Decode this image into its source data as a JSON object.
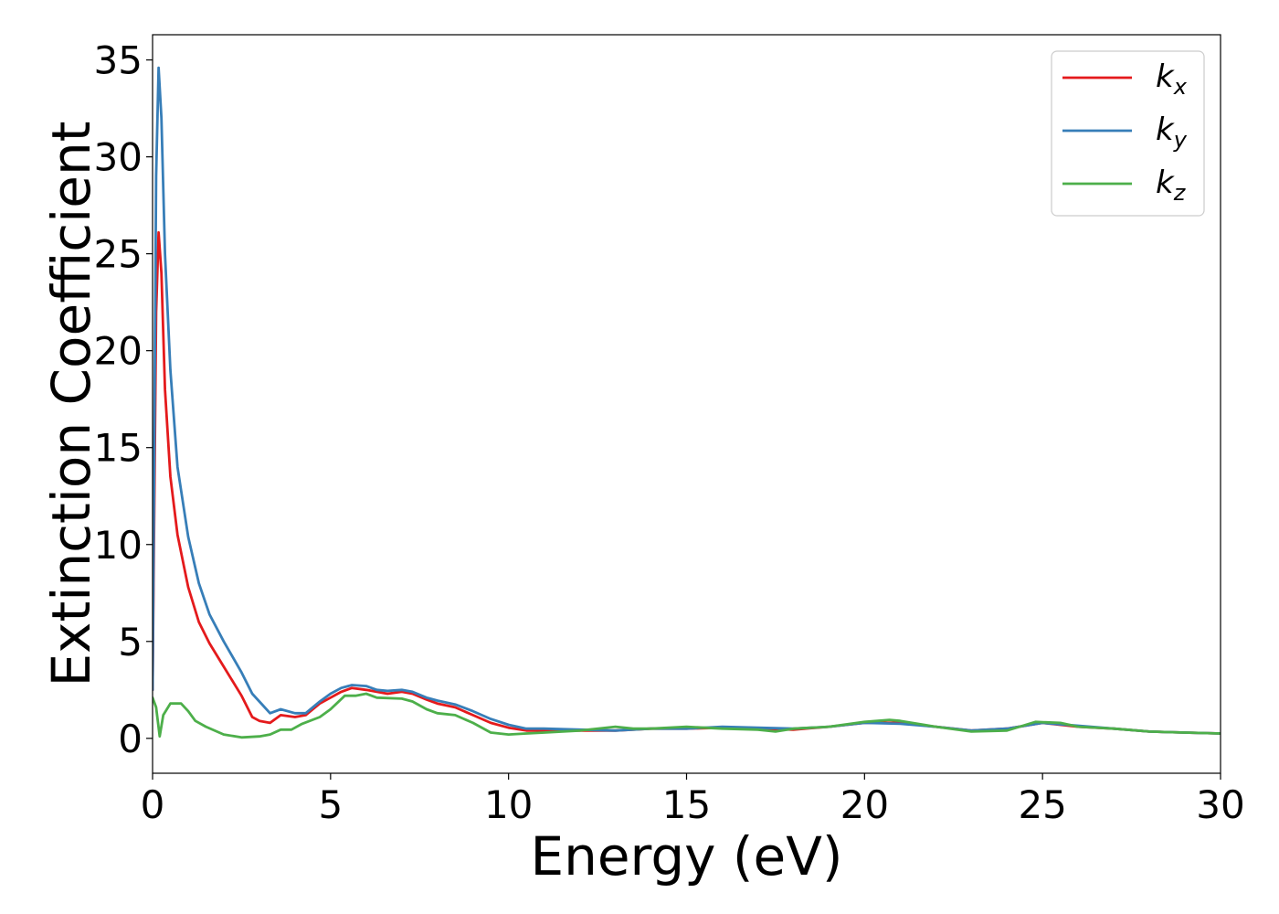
{
  "chart_data": {
    "type": "line",
    "xlabel": "Energy (eV)",
    "ylabel": "Extinction Coefficient",
    "xlim": [
      0,
      30
    ],
    "ylim": [
      -1.8,
      36.3
    ],
    "xticks": [
      0,
      5,
      10,
      15,
      20,
      25,
      30
    ],
    "yticks": [
      0,
      5,
      10,
      15,
      20,
      25,
      30,
      35
    ],
    "grid": false,
    "legend_position": "top-right",
    "series": [
      {
        "name": "k_x",
        "label_base": "k",
        "label_sub": "x",
        "color": "#e41a1c",
        "points": [
          [
            0,
            2.5
          ],
          [
            0.05,
            12
          ],
          [
            0.1,
            22
          ],
          [
            0.17,
            26.1
          ],
          [
            0.25,
            24
          ],
          [
            0.35,
            18
          ],
          [
            0.5,
            13.5
          ],
          [
            0.7,
            10.5
          ],
          [
            1,
            7.8
          ],
          [
            1.3,
            6
          ],
          [
            1.6,
            4.9
          ],
          [
            2,
            3.7
          ],
          [
            2.5,
            2.2
          ],
          [
            2.8,
            1.1
          ],
          [
            3,
            0.9
          ],
          [
            3.3,
            0.8
          ],
          [
            3.6,
            1.2
          ],
          [
            4,
            1.1
          ],
          [
            4.3,
            1.2
          ],
          [
            4.7,
            1.8
          ],
          [
            5,
            2.1
          ],
          [
            5.3,
            2.4
          ],
          [
            5.6,
            2.6
          ],
          [
            6,
            2.5
          ],
          [
            6.3,
            2.4
          ],
          [
            6.6,
            2.3
          ],
          [
            7,
            2.4
          ],
          [
            7.3,
            2.3
          ],
          [
            7.7,
            2.0
          ],
          [
            8,
            1.8
          ],
          [
            8.5,
            1.6
          ],
          [
            9,
            1.2
          ],
          [
            9.5,
            0.8
          ],
          [
            10,
            0.55
          ],
          [
            10.5,
            0.4
          ],
          [
            11,
            0.4
          ],
          [
            12,
            0.4
          ],
          [
            13,
            0.4
          ],
          [
            14,
            0.5
          ],
          [
            15,
            0.5
          ],
          [
            16,
            0.55
          ],
          [
            17,
            0.5
          ],
          [
            18,
            0.45
          ],
          [
            19,
            0.6
          ],
          [
            20,
            0.8
          ],
          [
            21,
            0.8
          ],
          [
            22,
            0.6
          ],
          [
            23,
            0.4
          ],
          [
            24,
            0.5
          ],
          [
            25,
            0.8
          ],
          [
            26,
            0.6
          ],
          [
            27,
            0.5
          ],
          [
            28,
            0.35
          ],
          [
            29,
            0.3
          ],
          [
            30,
            0.25
          ]
        ]
      },
      {
        "name": "k_y",
        "label_base": "k",
        "label_sub": "y",
        "color": "#377eb8",
        "points": [
          [
            0,
            2.5
          ],
          [
            0.05,
            15
          ],
          [
            0.1,
            29
          ],
          [
            0.17,
            34.6
          ],
          [
            0.25,
            32
          ],
          [
            0.35,
            25
          ],
          [
            0.5,
            19
          ],
          [
            0.7,
            14
          ],
          [
            1,
            10.4
          ],
          [
            1.3,
            8
          ],
          [
            1.6,
            6.4
          ],
          [
            2,
            5
          ],
          [
            2.5,
            3.4
          ],
          [
            2.8,
            2.3
          ],
          [
            3,
            1.9
          ],
          [
            3.3,
            1.3
          ],
          [
            3.6,
            1.5
          ],
          [
            4,
            1.3
          ],
          [
            4.3,
            1.3
          ],
          [
            4.7,
            1.9
          ],
          [
            5,
            2.3
          ],
          [
            5.3,
            2.6
          ],
          [
            5.6,
            2.75
          ],
          [
            6,
            2.7
          ],
          [
            6.3,
            2.5
          ],
          [
            6.6,
            2.45
          ],
          [
            7,
            2.5
          ],
          [
            7.3,
            2.4
          ],
          [
            7.7,
            2.1
          ],
          [
            8,
            1.95
          ],
          [
            8.5,
            1.75
          ],
          [
            9,
            1.4
          ],
          [
            9.5,
            1.0
          ],
          [
            10,
            0.7
          ],
          [
            10.5,
            0.5
          ],
          [
            11,
            0.5
          ],
          [
            12,
            0.45
          ],
          [
            13,
            0.4
          ],
          [
            14,
            0.5
          ],
          [
            15,
            0.5
          ],
          [
            16,
            0.6
          ],
          [
            17,
            0.55
          ],
          [
            18,
            0.5
          ],
          [
            19,
            0.6
          ],
          [
            20,
            0.8
          ],
          [
            21,
            0.75
          ],
          [
            22,
            0.6
          ],
          [
            23,
            0.4
          ],
          [
            24,
            0.5
          ],
          [
            25,
            0.8
          ],
          [
            26,
            0.65
          ],
          [
            27,
            0.5
          ],
          [
            28,
            0.35
          ],
          [
            29,
            0.3
          ],
          [
            30,
            0.25
          ]
        ]
      },
      {
        "name": "k_z",
        "label_base": "k",
        "label_sub": "z",
        "color": "#4daf4a",
        "points": [
          [
            0,
            2.1
          ],
          [
            0.1,
            1.6
          ],
          [
            0.2,
            0.1
          ],
          [
            0.3,
            1.2
          ],
          [
            0.5,
            1.8
          ],
          [
            0.8,
            1.8
          ],
          [
            1,
            1.4
          ],
          [
            1.2,
            0.9
          ],
          [
            1.5,
            0.6
          ],
          [
            2,
            0.2
          ],
          [
            2.5,
            0.05
          ],
          [
            3,
            0.1
          ],
          [
            3.3,
            0.2
          ],
          [
            3.6,
            0.45
          ],
          [
            3.9,
            0.45
          ],
          [
            4.2,
            0.75
          ],
          [
            4.7,
            1.1
          ],
          [
            5,
            1.5
          ],
          [
            5.4,
            2.2
          ],
          [
            5.7,
            2.2
          ],
          [
            6,
            2.3
          ],
          [
            6.3,
            2.1
          ],
          [
            7,
            2.05
          ],
          [
            7.3,
            1.9
          ],
          [
            7.7,
            1.5
          ],
          [
            8,
            1.3
          ],
          [
            8.5,
            1.2
          ],
          [
            9,
            0.8
          ],
          [
            9.5,
            0.3
          ],
          [
            10,
            0.2
          ],
          [
            10.5,
            0.25
          ],
          [
            11,
            0.3
          ],
          [
            12,
            0.4
          ],
          [
            13,
            0.6
          ],
          [
            13.5,
            0.5
          ],
          [
            14,
            0.5
          ],
          [
            15,
            0.6
          ],
          [
            16,
            0.5
          ],
          [
            17,
            0.45
          ],
          [
            17.5,
            0.35
          ],
          [
            18,
            0.5
          ],
          [
            19,
            0.6
          ],
          [
            20,
            0.85
          ],
          [
            20.7,
            0.95
          ],
          [
            21,
            0.9
          ],
          [
            22,
            0.6
          ],
          [
            23,
            0.35
          ],
          [
            24,
            0.4
          ],
          [
            24.8,
            0.85
          ],
          [
            25.5,
            0.8
          ],
          [
            26,
            0.6
          ],
          [
            27,
            0.5
          ],
          [
            28,
            0.35
          ],
          [
            29,
            0.3
          ],
          [
            30,
            0.25
          ]
        ]
      }
    ]
  }
}
